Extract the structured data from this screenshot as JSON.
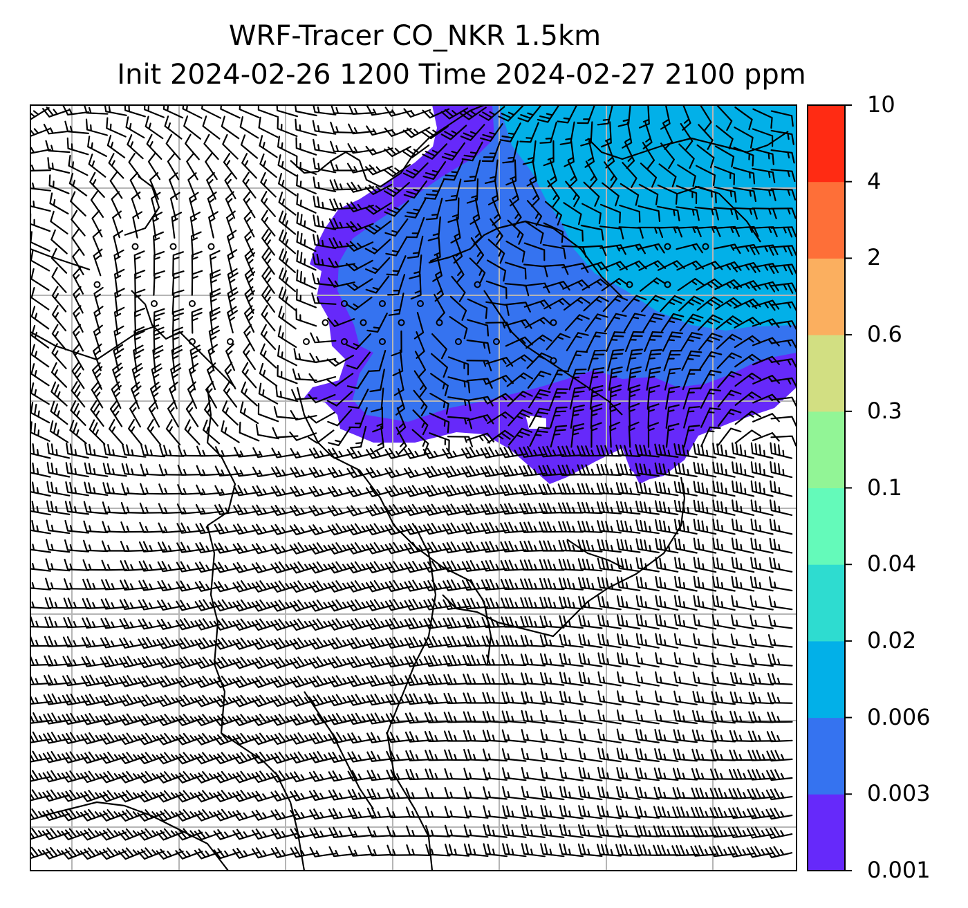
{
  "title": {
    "line1": "WRF-Tracer CO_NKR 1.5km",
    "line2": "Init 2024-02-26 1200 Time 2024-02-27 2100 ppm"
  },
  "colorbar": {
    "levels": [
      "0.001",
      "0.003",
      "0.006",
      "0.02",
      "0.04",
      "0.1",
      "0.3",
      "0.6",
      "2",
      "4",
      "10"
    ],
    "colors": [
      "#6629fa",
      "#3573f0",
      "#02b0e8",
      "#2edcd0",
      "#64faba",
      "#92f596",
      "#d2df82",
      "#fbaf5f",
      "#fe6f38",
      "#ff2b13"
    ]
  },
  "map": {
    "gridlines": true,
    "plume_colors": {
      "outer": "#6629fa",
      "middle": "#3573f0",
      "inner": "#02b0e8"
    },
    "overlays": [
      "wind-barbs",
      "coastlines",
      "calm-wind-circles"
    ]
  }
}
